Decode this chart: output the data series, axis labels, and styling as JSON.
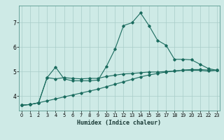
{
  "xlabel": "Humidex (Indice chaleur)",
  "bg_color": "#ceeae6",
  "line_color": "#1a6b5e",
  "grid_color": "#a8ccc8",
  "x_ticks": [
    0,
    1,
    2,
    3,
    4,
    5,
    6,
    7,
    8,
    9,
    10,
    11,
    12,
    13,
    14,
    15,
    16,
    17,
    18,
    19,
    20,
    21,
    22,
    23
  ],
  "y_ticks": [
    4,
    5,
    6,
    7
  ],
  "ylim": [
    3.4,
    7.7
  ],
  "xlim": [
    -0.3,
    23.3
  ],
  "line1_x": [
    0,
    1,
    2,
    3,
    4,
    5,
    6,
    7,
    8,
    9,
    10,
    11,
    12,
    13,
    14,
    15,
    16,
    17,
    18,
    19,
    20,
    21,
    22,
    23
  ],
  "line1_y": [
    3.62,
    3.65,
    3.72,
    4.75,
    5.18,
    4.7,
    4.62,
    4.62,
    4.62,
    4.65,
    5.22,
    5.92,
    6.88,
    7.0,
    7.4,
    6.88,
    6.28,
    6.08,
    5.5,
    5.5,
    5.48,
    5.3,
    5.12,
    5.05
  ],
  "line2_x": [
    0,
    1,
    2,
    3,
    4,
    5,
    6,
    7,
    8,
    9,
    10,
    11,
    12,
    13,
    14,
    15,
    16,
    17,
    18,
    19,
    20,
    21,
    22,
    23
  ],
  "line2_y": [
    3.62,
    3.65,
    3.72,
    4.75,
    4.7,
    4.75,
    4.72,
    4.7,
    4.72,
    4.72,
    4.8,
    4.85,
    4.9,
    4.92,
    4.95,
    4.98,
    4.98,
    5.0,
    5.02,
    5.05,
    5.05,
    5.05,
    5.02,
    5.05
  ],
  "line3_x": [
    0,
    1,
    2,
    3,
    4,
    5,
    6,
    7,
    8,
    9,
    10,
    11,
    12,
    13,
    14,
    15,
    16,
    17,
    18,
    19,
    20,
    21,
    22,
    23
  ],
  "line3_y": [
    3.62,
    3.65,
    3.72,
    3.8,
    3.88,
    3.96,
    4.04,
    4.12,
    4.2,
    4.28,
    4.38,
    4.48,
    4.58,
    4.68,
    4.78,
    4.86,
    4.92,
    4.98,
    5.02,
    5.06,
    5.08,
    5.08,
    5.06,
    5.05
  ]
}
